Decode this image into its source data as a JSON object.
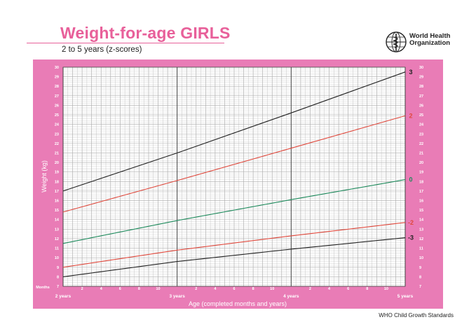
{
  "header": {
    "title": "Weight-for-age GIRLS",
    "subtitle": "2 to 5 years (z-scores)",
    "org_name": "World Health Organization",
    "footer": "WHO Child Growth Standards"
  },
  "colors": {
    "frame": "#e97cb6",
    "plot_bg": "#ffffff",
    "grid_minor": "#a8a8a8",
    "grid_major": "#444444",
    "title": "#e8609a",
    "sd3": "#222222",
    "sd2": "#e0483c",
    "median": "#1e8a5c"
  },
  "chart_data": {
    "type": "line",
    "title": "Weight-for-age GIRLS",
    "subtitle": "2 to 5 years (z-scores)",
    "xlabel": "Age (completed months and years)",
    "ylabel": "Weight (kg)",
    "x_corner_label": "Months",
    "xlim": [
      24,
      60
    ],
    "ylim": [
      7,
      30
    ],
    "yticks": [
      7,
      8,
      9,
      10,
      11,
      12,
      13,
      14,
      15,
      16,
      17,
      18,
      19,
      20,
      21,
      22,
      23,
      24,
      25,
      26,
      27,
      28,
      29,
      30
    ],
    "month_ticks": [
      {
        "x": 26,
        "label": "2"
      },
      {
        "x": 28,
        "label": "4"
      },
      {
        "x": 30,
        "label": "6"
      },
      {
        "x": 32,
        "label": "8"
      },
      {
        "x": 34,
        "label": "10"
      },
      {
        "x": 38,
        "label": "2"
      },
      {
        "x": 40,
        "label": "4"
      },
      {
        "x": 42,
        "label": "6"
      },
      {
        "x": 44,
        "label": "8"
      },
      {
        "x": 46,
        "label": "10"
      },
      {
        "x": 50,
        "label": "2"
      },
      {
        "x": 52,
        "label": "4"
      },
      {
        "x": 54,
        "label": "6"
      },
      {
        "x": 56,
        "label": "8"
      },
      {
        "x": 58,
        "label": "10"
      }
    ],
    "year_ticks": [
      {
        "x": 24,
        "label": "2 years"
      },
      {
        "x": 36,
        "label": "3 years"
      },
      {
        "x": 48,
        "label": "4 years"
      },
      {
        "x": 60,
        "label": "5 years"
      }
    ],
    "grid": true,
    "series": [
      {
        "name": "3",
        "color": "#222222",
        "x": [
          24,
          36,
          48,
          60
        ],
        "y": [
          17.0,
          21.0,
          25.2,
          29.5
        ]
      },
      {
        "name": "2",
        "color": "#e0483c",
        "x": [
          24,
          36,
          48,
          60
        ],
        "y": [
          14.8,
          18.1,
          21.5,
          24.9
        ]
      },
      {
        "name": "0",
        "color": "#1e8a5c",
        "x": [
          24,
          36,
          48,
          60
        ],
        "y": [
          11.5,
          13.9,
          16.1,
          18.2
        ]
      },
      {
        "name": "-2",
        "color": "#e0483c",
        "x": [
          24,
          36,
          48,
          60
        ],
        "y": [
          9.0,
          10.8,
          12.3,
          13.7
        ]
      },
      {
        "name": "-3",
        "color": "#222222",
        "x": [
          24,
          36,
          48,
          60
        ],
        "y": [
          8.0,
          9.6,
          10.9,
          12.1
        ]
      }
    ]
  }
}
